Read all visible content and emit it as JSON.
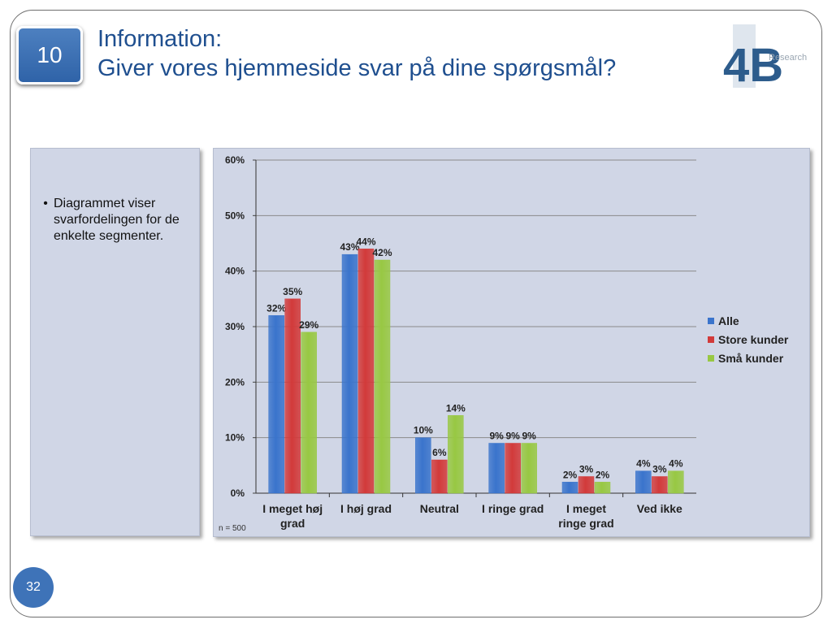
{
  "slide": {
    "number_badge": "10",
    "title_line1": "Information:",
    "title_line2": "Giver vores hjemmeside svar på dine spørgsmål?",
    "page_number": "32"
  },
  "logo": {
    "text": "4B",
    "sub": "Research"
  },
  "left_panel": {
    "bullet": "Diagrammet viser svarfordelingen for de enkelte segmenter."
  },
  "colors": {
    "alle": "#3a74cc",
    "store": "#d23a3a",
    "smaa": "#98c843",
    "title": "#1f4f8f",
    "panel": "#d0d6e6"
  },
  "chart_data": {
    "type": "bar",
    "categories": [
      "I meget høj grad",
      "I høj grad",
      "Neutral",
      "I ringe grad",
      "I meget ringe grad",
      "Ved ikke"
    ],
    "series": [
      {
        "name": "Alle",
        "values": [
          32,
          43,
          10,
          9,
          2,
          4
        ],
        "labels": [
          "32%",
          "43%",
          "10%",
          "9%",
          "2%",
          "4%"
        ]
      },
      {
        "name": "Store kunder",
        "values": [
          35,
          44,
          6,
          9,
          3,
          3
        ],
        "labels": [
          "35%",
          "44%",
          "6%",
          "9%",
          "3%",
          "3%"
        ]
      },
      {
        "name": "Små kunder",
        "values": [
          29,
          42,
          14,
          9,
          2,
          4
        ],
        "labels": [
          "29%",
          "42%",
          "14%",
          "9%",
          "2%",
          "4%"
        ]
      }
    ],
    "y_ticks": [
      "0%",
      "10%",
      "20%",
      "30%",
      "40%",
      "50%",
      "60%"
    ],
    "ylim": [
      0,
      60
    ],
    "grid": true,
    "legend": "right",
    "note": "n = 500"
  }
}
